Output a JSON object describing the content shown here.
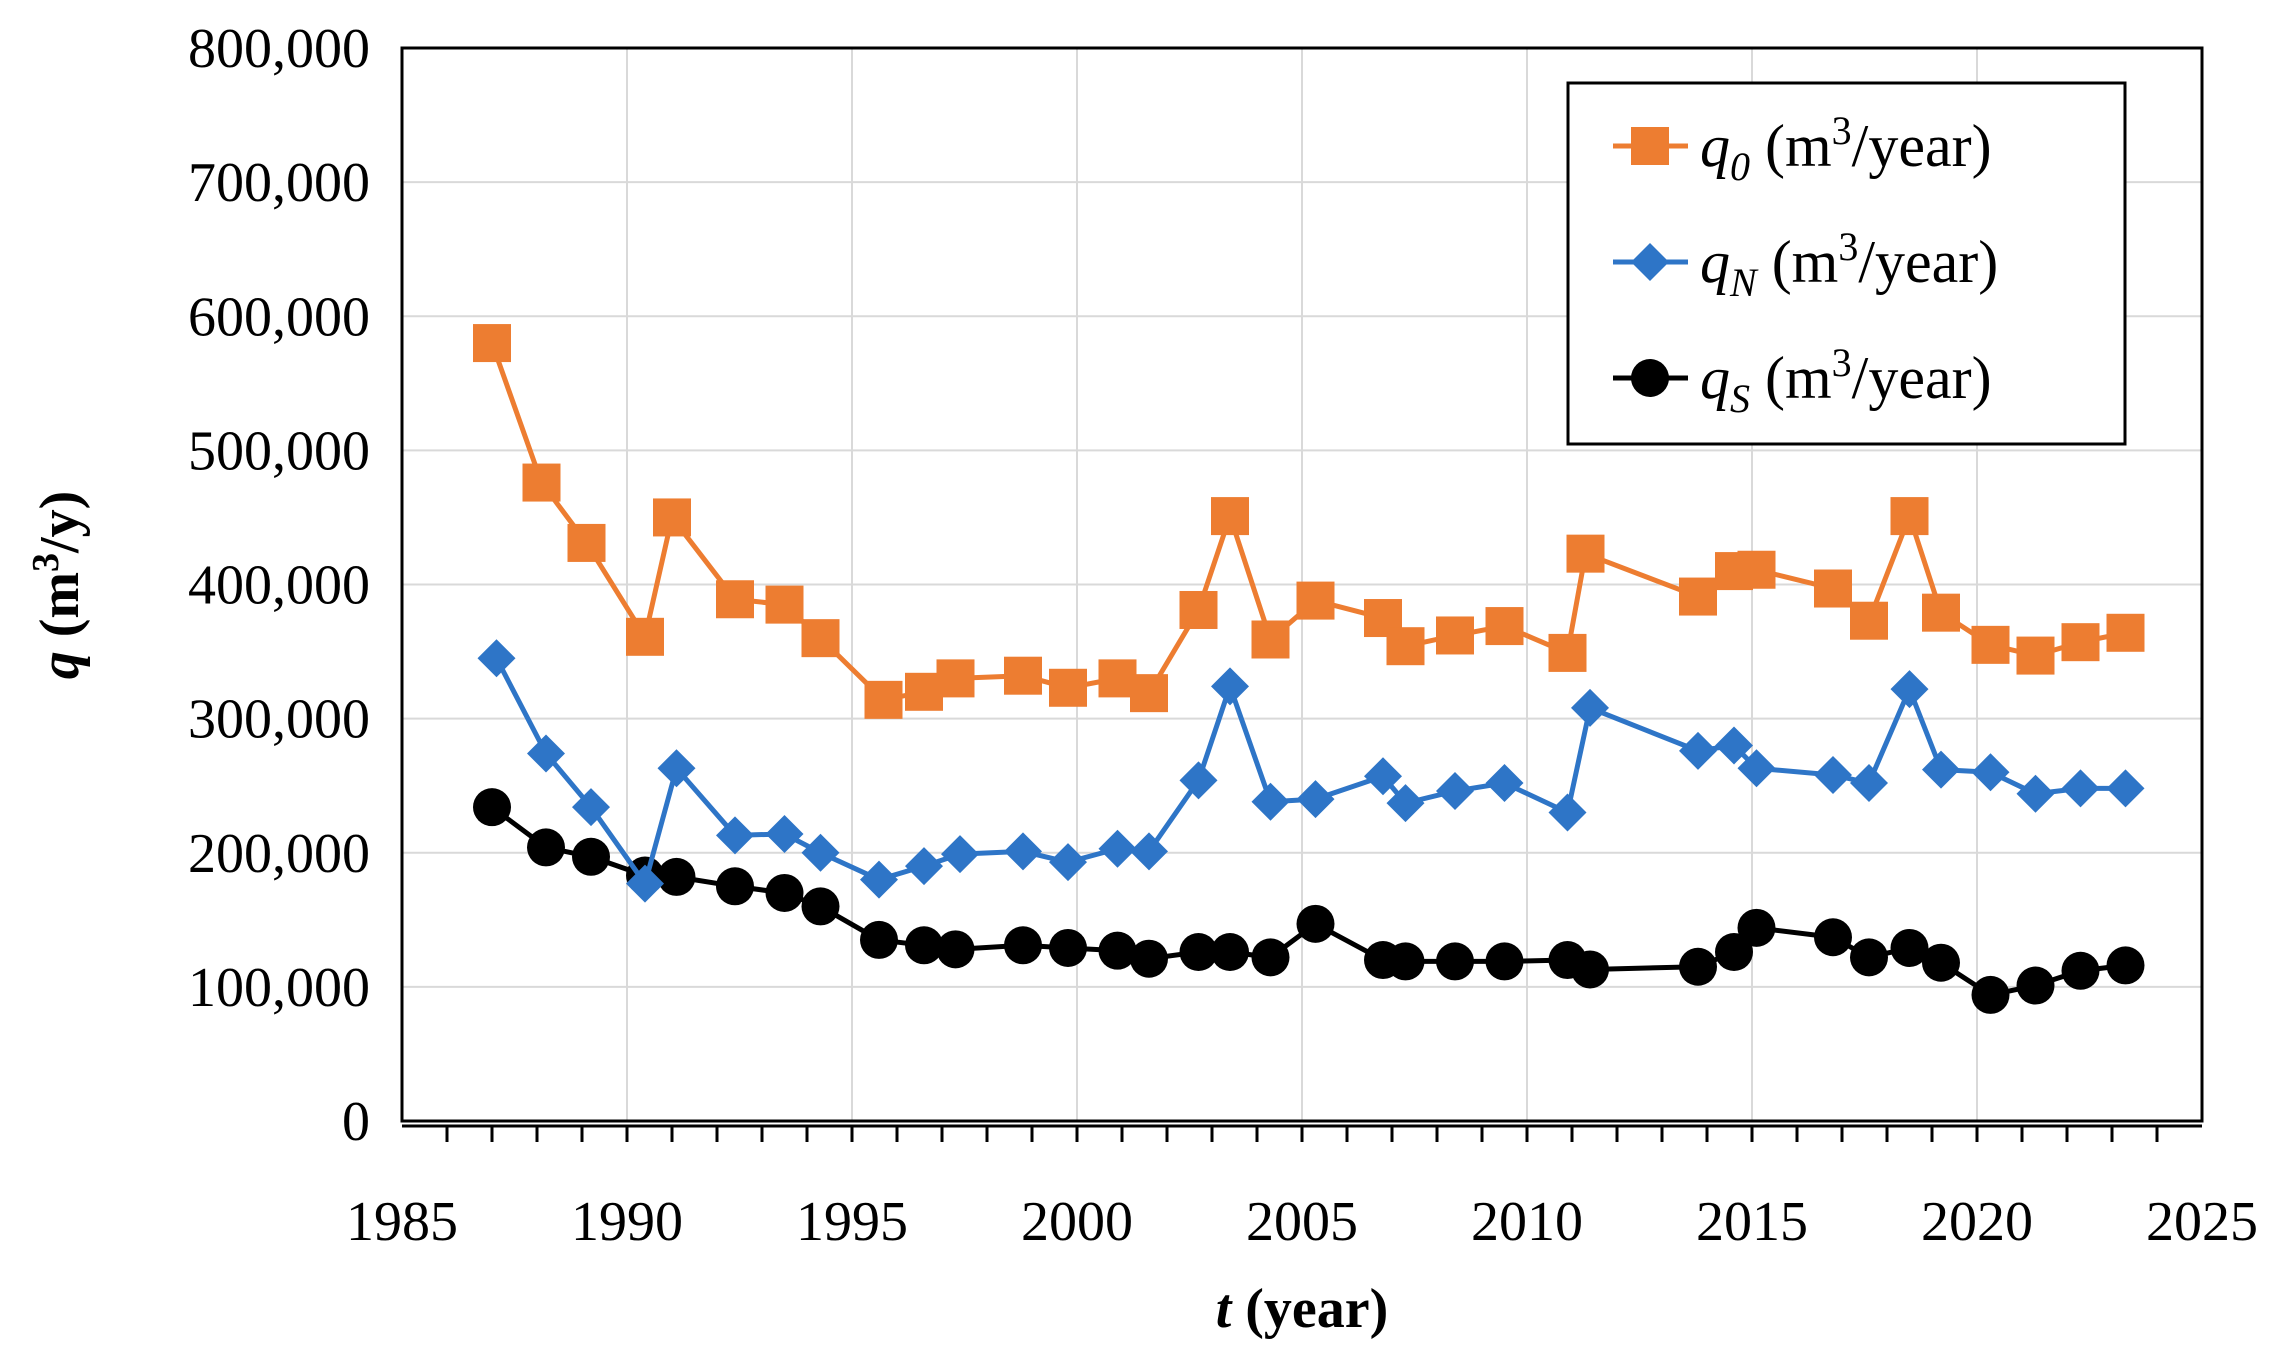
{
  "chart_data": {
    "type": "line",
    "title": "",
    "xlabel": {
      "var": "t",
      "unit": "(year)"
    },
    "ylabel": {
      "var": "q",
      "unit": "(m",
      "sup": "3",
      "unit_end": "/y)"
    },
    "xlim": [
      1985,
      2025
    ],
    "ylim": [
      0,
      800000
    ],
    "xticks": [
      1985,
      1990,
      1995,
      2000,
      2005,
      2010,
      2015,
      2020,
      2025
    ],
    "xtick_labels": [
      "1985",
      "1990",
      "1995",
      "2000",
      "2005",
      "2010",
      "2015",
      "2020",
      "2025"
    ],
    "yticks": [
      0,
      100000,
      200000,
      300000,
      400000,
      500000,
      600000,
      700000,
      800000
    ],
    "ytick_labels": [
      "0",
      "100,000",
      "200,000",
      "300,000",
      "400,000",
      "500,000",
      "600,000",
      "700,000",
      "800,000"
    ],
    "legend_position": "top-right",
    "series": [
      {
        "name": "q0 (m3/year)",
        "label_var": "q",
        "label_sub": "0",
        "label_unit": " (m",
        "label_sup": "3",
        "label_unit_end": "/year)",
        "color": "#ED7D31",
        "marker": "square",
        "x": [
          1987.0,
          1988.1,
          1989.1,
          1990.4,
          1991.0,
          1992.4,
          1993.5,
          1994.3,
          1995.7,
          1996.6,
          1997.3,
          1998.8,
          1999.8,
          2000.9,
          2001.6,
          2002.7,
          2003.4,
          2004.3,
          2005.3,
          2006.8,
          2007.3,
          2008.4,
          2009.5,
          2010.9,
          2011.3,
          2013.8,
          2014.6,
          2015.1,
          2016.8,
          2017.6,
          2018.5,
          2019.2,
          2020.3,
          2021.3,
          2022.3,
          2023.3
        ],
        "y": [
          580000,
          476000,
          431000,
          361000,
          450000,
          389000,
          385000,
          360000,
          314000,
          320000,
          330000,
          332000,
          323000,
          330000,
          319000,
          381000,
          451000,
          359000,
          388000,
          375000,
          354000,
          362000,
          369000,
          349000,
          423000,
          391000,
          410000,
          411000,
          397000,
          373000,
          451000,
          379000,
          355000,
          347000,
          357000,
          364000
        ]
      },
      {
        "name": "qN (m3/year)",
        "label_var": "q",
        "label_sub": "N",
        "label_unit": " (m",
        "label_sup": "3",
        "label_unit_end": "/year)",
        "color": "#2E75C7",
        "marker": "diamond",
        "x": [
          1987.1,
          1988.2,
          1989.2,
          1990.4,
          1991.1,
          1992.4,
          1993.5,
          1994.3,
          1995.6,
          1996.6,
          1997.4,
          1998.8,
          1999.8,
          2000.9,
          2001.6,
          2002.7,
          2003.4,
          2004.3,
          2005.3,
          2006.8,
          2007.3,
          2008.4,
          2009.5,
          2010.9,
          2011.4,
          2013.8,
          2014.6,
          2015.1,
          2016.8,
          2017.6,
          2018.5,
          2019.2,
          2020.3,
          2021.3,
          2022.3,
          2023.3
        ],
        "y": [
          345000,
          274000,
          234000,
          177000,
          263000,
          213000,
          214000,
          200000,
          180000,
          190000,
          199000,
          201000,
          193000,
          203000,
          201000,
          254000,
          324000,
          238000,
          240000,
          257000,
          237000,
          246000,
          252000,
          230000,
          308000,
          276000,
          280000,
          263000,
          258000,
          252000,
          322000,
          262000,
          260000,
          244000,
          248000,
          248000
        ]
      },
      {
        "name": "qS (m3/year)",
        "label_var": "q",
        "label_sub": "S",
        "label_unit": " (m",
        "label_sup": "3",
        "label_unit_end": "/year)",
        "color": "#000000",
        "marker": "circle",
        "x": [
          1987.0,
          1988.2,
          1989.2,
          1990.4,
          1991.1,
          1992.4,
          1993.5,
          1994.3,
          1995.6,
          1996.6,
          1997.3,
          1998.8,
          1999.8,
          2000.9,
          2001.6,
          2002.7,
          2003.4,
          2004.3,
          2005.3,
          2006.8,
          2007.3,
          2008.4,
          2009.5,
          2010.9,
          2011.4,
          2013.8,
          2014.6,
          2015.1,
          2016.8,
          2017.6,
          2018.5,
          2019.2,
          2020.3,
          2021.3,
          2022.3,
          2023.3
        ],
        "y": [
          234000,
          204000,
          197000,
          183000,
          182000,
          175000,
          170000,
          160000,
          135000,
          131000,
          128000,
          131000,
          129000,
          127000,
          121000,
          126000,
          126000,
          122000,
          147000,
          120000,
          119000,
          119000,
          119000,
          120000,
          113000,
          115000,
          126000,
          144000,
          137000,
          122000,
          129000,
          118000,
          94000,
          101000,
          112000,
          116000
        ]
      }
    ]
  }
}
